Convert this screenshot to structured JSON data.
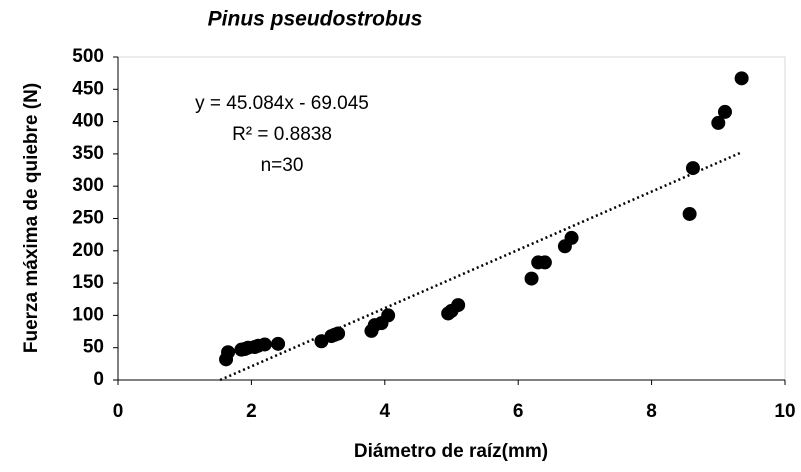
{
  "chart_data": {
    "type": "scatter",
    "title": "Pinus pseudostrobus",
    "x_label": "Diámetro de raíz(mm)",
    "y_label": "Fuerza máxima de quiebre (N)",
    "x": [
      1.62,
      1.65,
      1.85,
      1.9,
      1.95,
      2.05,
      2.1,
      2.2,
      2.4,
      3.05,
      3.2,
      3.25,
      3.3,
      3.8,
      3.85,
      3.95,
      4.05,
      4.95,
      5.0,
      5.1,
      6.2,
      6.3,
      6.4,
      6.7,
      6.8,
      8.57,
      8.62,
      9.0,
      9.1,
      9.35
    ],
    "values": [
      32,
      43,
      47,
      48,
      50,
      51,
      53,
      55,
      56,
      60,
      68,
      70,
      72,
      76,
      85,
      88,
      100,
      103,
      107,
      116,
      157,
      182,
      182,
      207,
      220,
      257,
      328,
      398,
      415,
      467
    ],
    "color": "#000000",
    "xlim": [
      0,
      10
    ],
    "xticks": [
      0,
      2,
      4,
      6,
      8,
      10
    ],
    "ylim": [
      0,
      500
    ],
    "yticks": [
      0,
      50,
      100,
      150,
      200,
      250,
      300,
      350,
      400,
      450,
      500
    ],
    "trendline": {
      "slope": 45.084,
      "intercept": -69.045,
      "equation": "y = 45.084x - 69.045",
      "r2": "R² = 0.8838",
      "n": "n=30"
    }
  }
}
